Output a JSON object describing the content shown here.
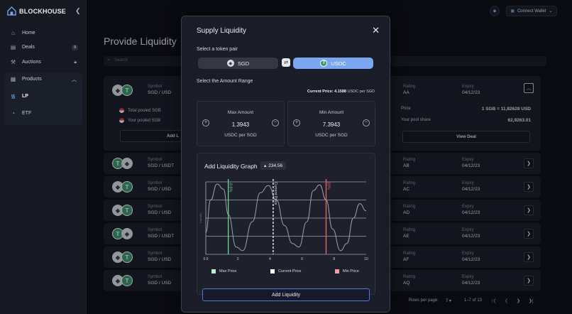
{
  "app": {
    "brand": "BLOCKHOUSE",
    "connect_wallet": "Connect Wallet"
  },
  "sidebar": {
    "items": [
      {
        "label": "Home",
        "icon": "home-icon"
      },
      {
        "label": "Deals",
        "icon": "document-icon",
        "badge": "9"
      },
      {
        "label": "Auctions",
        "icon": "gavel-icon"
      },
      {
        "label": "Products",
        "icon": "grid-icon"
      },
      {
        "label": "LP",
        "icon": "wifi-icon"
      },
      {
        "label": "ETF",
        "icon": "chart-icon"
      }
    ]
  },
  "main": {
    "title": "Provide Liquidity",
    "search_placeholder": "Search",
    "columns": {
      "symbol": "Symbol",
      "rating": "Rating",
      "expiry": "Expiry"
    },
    "expanded": {
      "symbol": "SGD / USD",
      "rating": "AA",
      "expiry": "04/12/23",
      "total_pooled": "Total pooled SGB",
      "your_pooled": "Your pooled SGB",
      "add_label": "Add L",
      "price_label": "Price",
      "price_value": "1 SGB = 11,82628 USD",
      "share_label": "Your pool share",
      "share_value": "62,9263.01",
      "view_deal": "View Deal"
    },
    "rows": [
      {
        "symbol": "SGD / USDT",
        "rating": "AB",
        "expiry": "04/12/23"
      },
      {
        "symbol": "SGD / USD",
        "rating": "AC",
        "expiry": "04/12/23"
      },
      {
        "symbol": "SGD / USD",
        "rating": "AD",
        "expiry": "04/12/23"
      },
      {
        "symbol": "SGD / USDT",
        "rating": "AE",
        "expiry": "04/12/23"
      },
      {
        "symbol": "SGD / USD",
        "rating": "AF",
        "expiry": "04/12/23"
      },
      {
        "symbol": "SGD / USD",
        "rating": "AQ",
        "expiry": "04/12/23"
      }
    ],
    "footer": {
      "rows_per_page": "Rows per page:",
      "per_page": "7",
      "range": "1–7 of 13"
    }
  },
  "modal": {
    "title": "Supply Liquidity",
    "select_pair": "Select a token pair",
    "token_a": "SGD",
    "token_b": "USDC",
    "select_range": "Select the Amount Range",
    "current_price_label": "Current Price:",
    "current_price_value": "4.1588",
    "current_price_unit": "USDC per SGD",
    "max": {
      "title": "Max Amount",
      "value": "1.3943",
      "unit": "USDC per SGD"
    },
    "min": {
      "title": "Min Amount",
      "value": "7.3943",
      "unit": "USDC per SGD"
    },
    "graph": {
      "title": "Add Liquidity Graph",
      "chip": "234.56"
    },
    "legend": [
      "Max Price",
      "Current Price",
      "Min Price"
    ],
    "add_button": "Add Liquidity"
  },
  "colors": {
    "accent": "#7aa6f2",
    "green": "#6fd19a",
    "red": "#e86a6a"
  },
  "chart_data": {
    "type": "line",
    "x_ticks": [
      "0.0",
      "2",
      "4",
      "6",
      "8",
      "10"
    ],
    "xlim": [
      0,
      10
    ],
    "ylabel": "Liquidity",
    "x": [
      0,
      0.3,
      0.7,
      1.1,
      1.4,
      1.9,
      2.3,
      2.9,
      3.4,
      3.9,
      4.4,
      4.9,
      5.4,
      5.8,
      6.3,
      6.7,
      7.1,
      7.5,
      7.9,
      8.4,
      8.8,
      9.2,
      9.6,
      10
    ],
    "y": [
      0.3,
      0.75,
      0.97,
      0.9,
      0.55,
      0.1,
      0.05,
      0.45,
      0.85,
      0.95,
      0.75,
      0.4,
      0.15,
      0.1,
      0.45,
      0.88,
      0.96,
      0.75,
      0.35,
      0.05,
      0.15,
      0.5,
      0.7,
      0.6
    ],
    "markers": [
      {
        "name": "-9.6%",
        "x": 1.4,
        "kind": "max"
      },
      {
        "name": "Current Price",
        "x": 4.2,
        "kind": "current"
      },
      {
        "name": "20%",
        "x": 7.5,
        "kind": "min"
      }
    ]
  }
}
